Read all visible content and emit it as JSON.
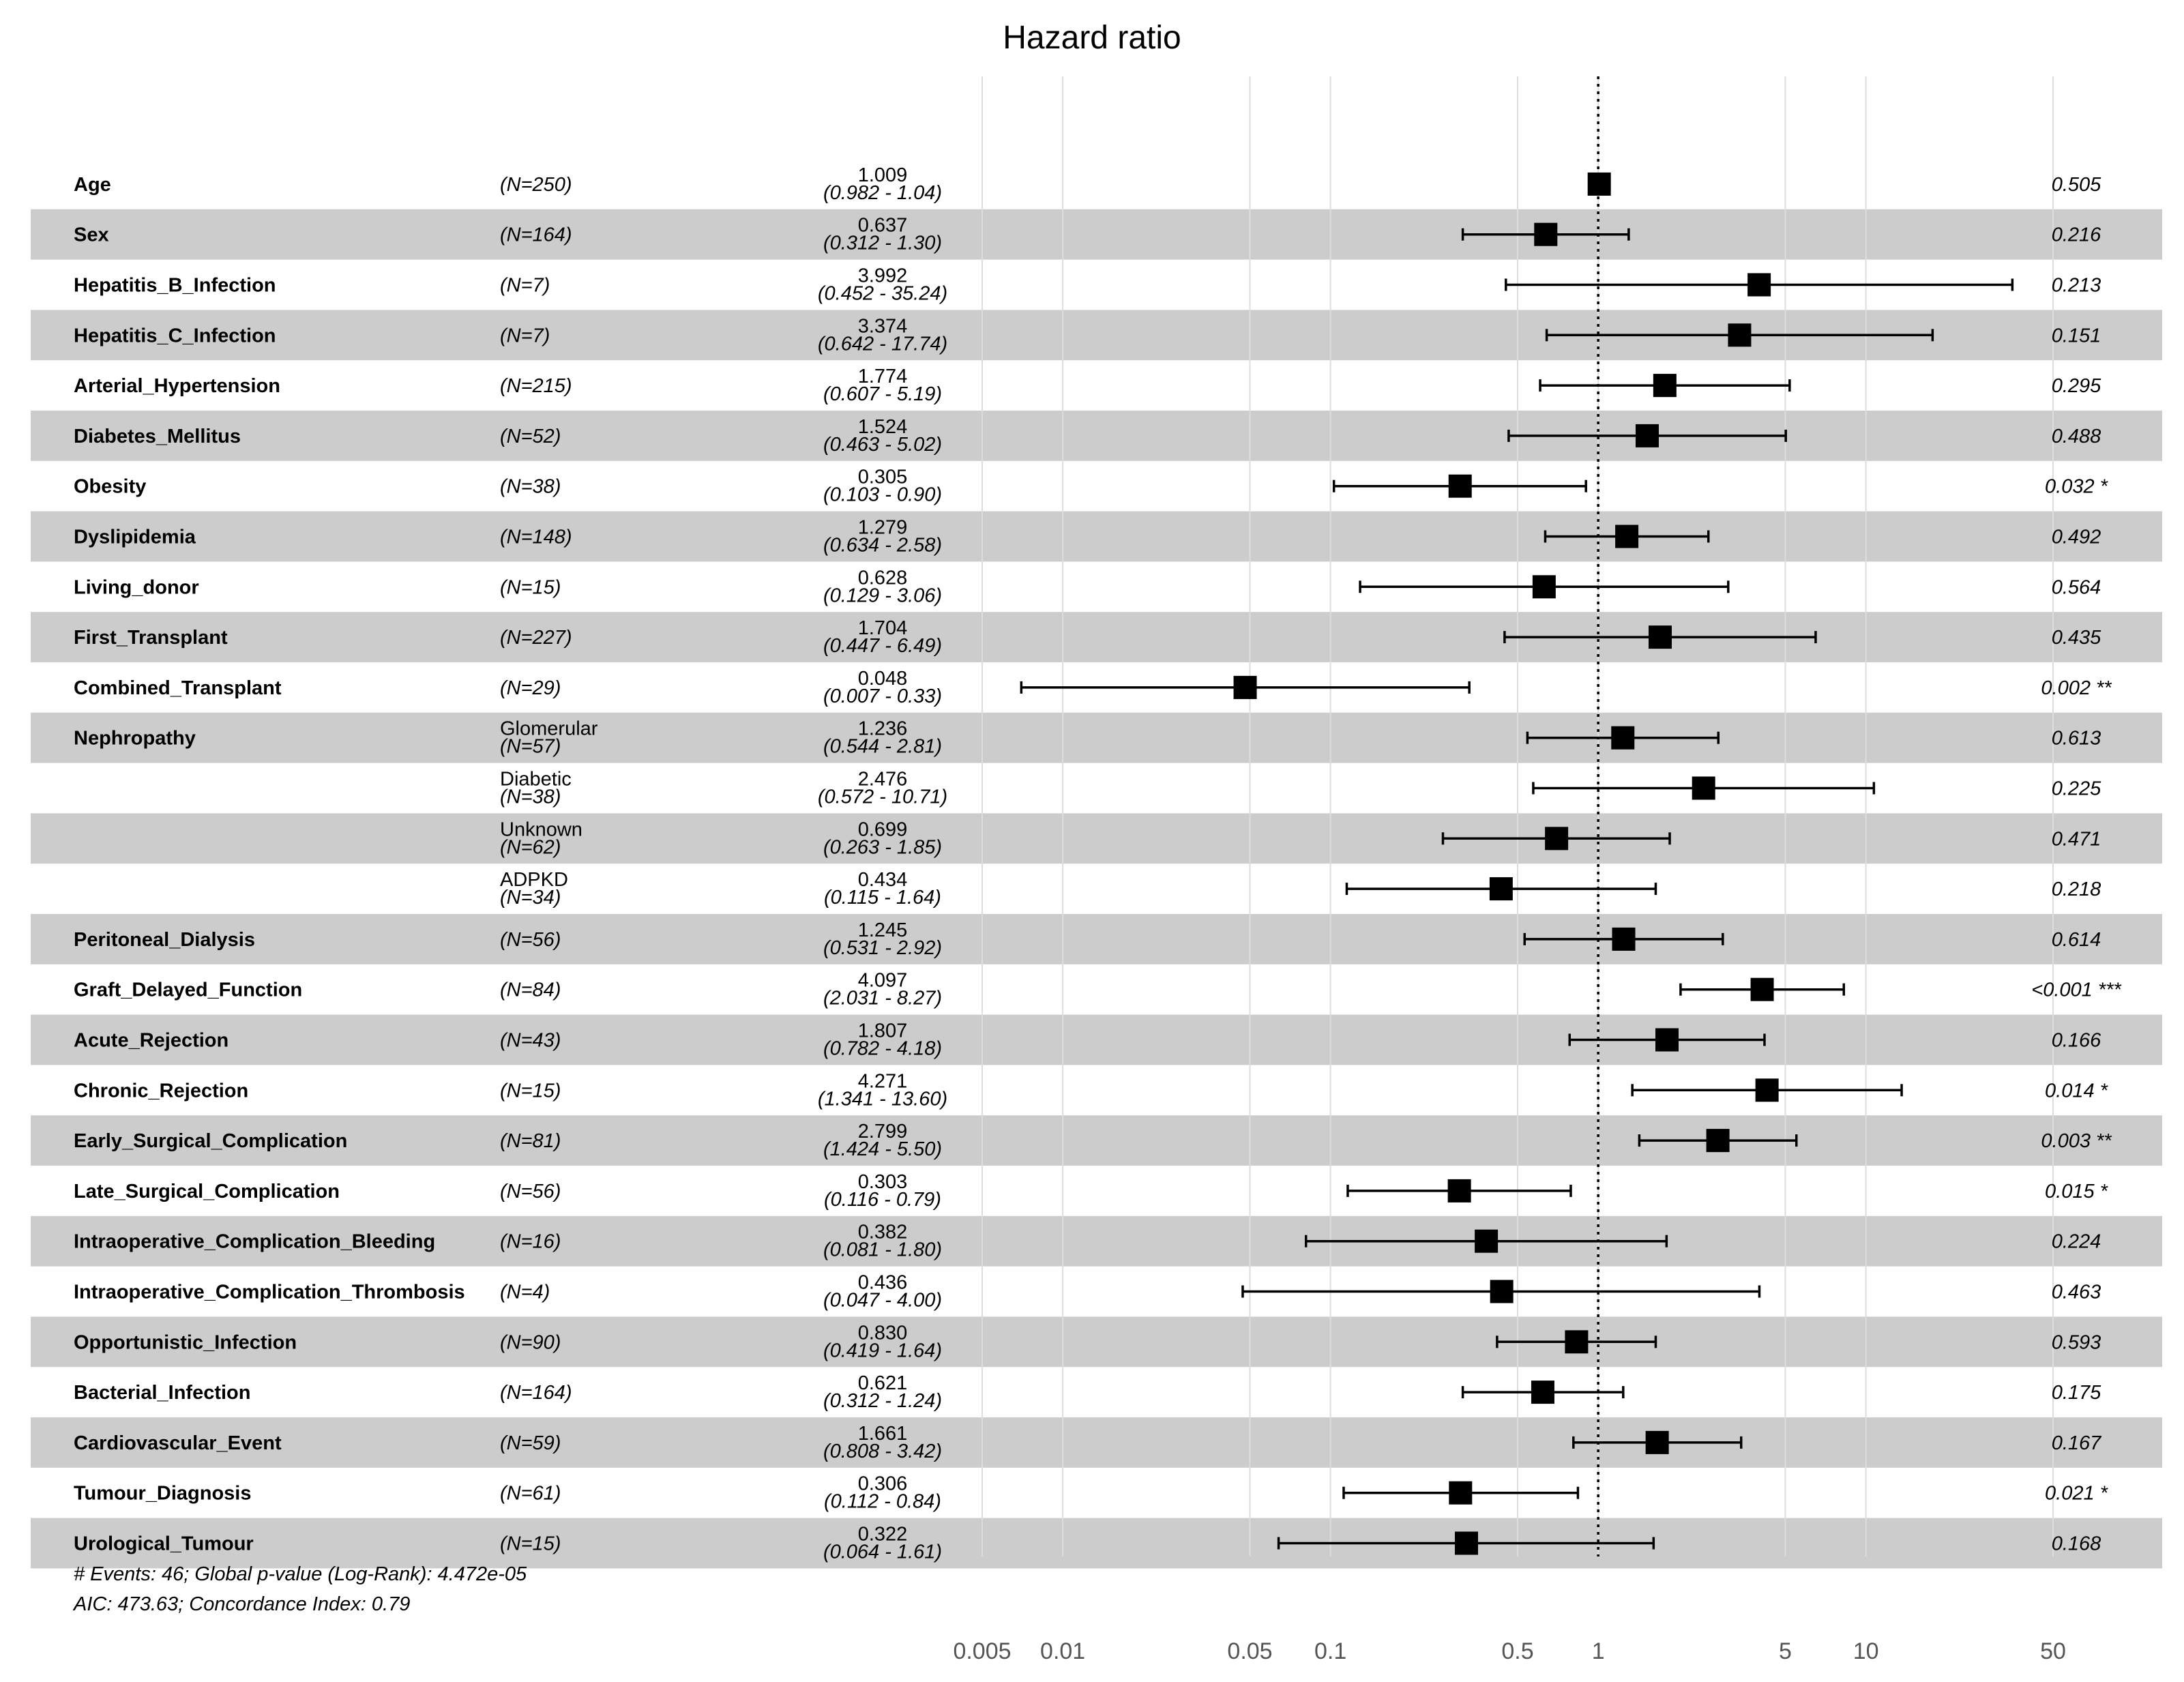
{
  "chart_data": {
    "type": "forest",
    "title": "Hazard ratio",
    "x_scale": "log",
    "reference_line": 1,
    "xlim": [
      0.005,
      50
    ],
    "x_ticks": [
      {
        "value": 0.005,
        "label": "0.005"
      },
      {
        "value": 0.01,
        "label": "0.01"
      },
      {
        "value": 0.05,
        "label": "0.05"
      },
      {
        "value": 0.1,
        "label": "0.1"
      },
      {
        "value": 0.5,
        "label": "0.5"
      },
      {
        "value": 1,
        "label": "1"
      },
      {
        "value": 5,
        "label": "5"
      },
      {
        "value": 10,
        "label": "10"
      },
      {
        "value": 50,
        "label": "50"
      }
    ],
    "rows": [
      {
        "var": "Age",
        "level": "",
        "n": "(N=250)",
        "hr": 1.009,
        "lo": 0.982,
        "hi": 1.04,
        "hr_text": "1.009",
        "ci_text": "(0.982 -  1.04)",
        "p": "0.505",
        "shade": false
      },
      {
        "var": "Sex",
        "level": "",
        "n": "(N=164)",
        "hr": 0.637,
        "lo": 0.312,
        "hi": 1.3,
        "hr_text": "0.637",
        "ci_text": "(0.312 -  1.30)",
        "p": "0.216",
        "shade": true
      },
      {
        "var": "Hepatitis_B_Infection",
        "level": "",
        "n": "(N=7)",
        "hr": 3.992,
        "lo": 0.452,
        "hi": 35.24,
        "hr_text": "3.992",
        "ci_text": "(0.452 - 35.24)",
        "p": "0.213",
        "shade": false
      },
      {
        "var": "Hepatitis_C_Infection",
        "level": "",
        "n": "(N=7)",
        "hr": 3.374,
        "lo": 0.642,
        "hi": 17.74,
        "hr_text": "3.374",
        "ci_text": "(0.642 - 17.74)",
        "p": "0.151",
        "shade": true
      },
      {
        "var": "Arterial_Hypertension",
        "level": "",
        "n": "(N=215)",
        "hr": 1.774,
        "lo": 0.607,
        "hi": 5.19,
        "hr_text": "1.774",
        "ci_text": "(0.607 -  5.19)",
        "p": "0.295",
        "shade": false
      },
      {
        "var": "Diabetes_Mellitus",
        "level": "",
        "n": "(N=52)",
        "hr": 1.524,
        "lo": 0.463,
        "hi": 5.02,
        "hr_text": "1.524",
        "ci_text": "(0.463 -  5.02)",
        "p": "0.488",
        "shade": true
      },
      {
        "var": "Obesity",
        "level": "",
        "n": "(N=38)",
        "hr": 0.305,
        "lo": 0.103,
        "hi": 0.9,
        "hr_text": "0.305",
        "ci_text": "(0.103 -  0.90)",
        "p": "0.032 *",
        "shade": false
      },
      {
        "var": "Dyslipidemia",
        "level": "",
        "n": "(N=148)",
        "hr": 1.279,
        "lo": 0.634,
        "hi": 2.58,
        "hr_text": "1.279",
        "ci_text": "(0.634 -  2.58)",
        "p": "0.492",
        "shade": true
      },
      {
        "var": "Living_donor",
        "level": "",
        "n": "(N=15)",
        "hr": 0.628,
        "lo": 0.129,
        "hi": 3.06,
        "hr_text": "0.628",
        "ci_text": "(0.129 -  3.06)",
        "p": "0.564",
        "shade": false
      },
      {
        "var": "First_Transplant",
        "level": "",
        "n": "(N=227)",
        "hr": 1.704,
        "lo": 0.447,
        "hi": 6.49,
        "hr_text": "1.704",
        "ci_text": "(0.447 -  6.49)",
        "p": "0.435",
        "shade": true
      },
      {
        "var": "Combined_Transplant",
        "level": "",
        "n": "(N=29)",
        "hr": 0.048,
        "lo": 0.007,
        "hi": 0.33,
        "hr_text": "0.048",
        "ci_text": "(0.007 -  0.33)",
        "p": "0.002 **",
        "shade": false
      },
      {
        "var": "Nephropathy",
        "level": "Glomerular",
        "n": "(N=57)",
        "hr": 1.236,
        "lo": 0.544,
        "hi": 2.81,
        "hr_text": "1.236",
        "ci_text": "(0.544 -  2.81)",
        "p": "0.613",
        "shade": true
      },
      {
        "var": "",
        "level": "Diabetic",
        "n": "(N=38)",
        "hr": 2.476,
        "lo": 0.572,
        "hi": 10.71,
        "hr_text": "2.476",
        "ci_text": "(0.572 - 10.71)",
        "p": "0.225",
        "shade": false
      },
      {
        "var": "",
        "level": "Unknown",
        "n": "(N=62)",
        "hr": 0.699,
        "lo": 0.263,
        "hi": 1.85,
        "hr_text": "0.699",
        "ci_text": "(0.263 -  1.85)",
        "p": "0.471",
        "shade": true
      },
      {
        "var": "",
        "level": "ADPKD",
        "n": "(N=34)",
        "hr": 0.434,
        "lo": 0.115,
        "hi": 1.64,
        "hr_text": "0.434",
        "ci_text": "(0.115 -  1.64)",
        "p": "0.218",
        "shade": false
      },
      {
        "var": "Peritoneal_Dialysis",
        "level": "",
        "n": "(N=56)",
        "hr": 1.245,
        "lo": 0.531,
        "hi": 2.92,
        "hr_text": "1.245",
        "ci_text": "(0.531 -  2.92)",
        "p": "0.614",
        "shade": true
      },
      {
        "var": "Graft_Delayed_Function",
        "level": "",
        "n": "(N=84)",
        "hr": 4.097,
        "lo": 2.031,
        "hi": 8.27,
        "hr_text": "4.097",
        "ci_text": "(2.031 -  8.27)",
        "p": "<0.001 ***",
        "shade": false
      },
      {
        "var": "Acute_Rejection",
        "level": "",
        "n": "(N=43)",
        "hr": 1.807,
        "lo": 0.782,
        "hi": 4.18,
        "hr_text": "1.807",
        "ci_text": "(0.782 -  4.18)",
        "p": "0.166",
        "shade": true
      },
      {
        "var": "Chronic_Rejection",
        "level": "",
        "n": "(N=15)",
        "hr": 4.271,
        "lo": 1.341,
        "hi": 13.6,
        "hr_text": "4.271",
        "ci_text": "(1.341 - 13.60)",
        "p": "0.014 *",
        "shade": false
      },
      {
        "var": "Early_Surgical_Complication",
        "level": "",
        "n": "(N=81)",
        "hr": 2.799,
        "lo": 1.424,
        "hi": 5.5,
        "hr_text": "2.799",
        "ci_text": "(1.424 -  5.50)",
        "p": "0.003 **",
        "shade": true
      },
      {
        "var": "Late_Surgical_Complication",
        "level": "",
        "n": "(N=56)",
        "hr": 0.303,
        "lo": 0.116,
        "hi": 0.79,
        "hr_text": "0.303",
        "ci_text": "(0.116 -  0.79)",
        "p": "0.015 *",
        "shade": false
      },
      {
        "var": "Intraoperative_Complication_Bleeding",
        "level": "",
        "n": "(N=16)",
        "hr": 0.382,
        "lo": 0.081,
        "hi": 1.8,
        "hr_text": "0.382",
        "ci_text": "(0.081 -  1.80)",
        "p": "0.224",
        "shade": true
      },
      {
        "var": "Intraoperative_Complication_Thrombosis",
        "level": "",
        "n": "(N=4)",
        "hr": 0.436,
        "lo": 0.047,
        "hi": 4.0,
        "hr_text": "0.436",
        "ci_text": "(0.047 -  4.00)",
        "p": "0.463",
        "shade": false
      },
      {
        "var": "Opportunistic_Infection",
        "level": "",
        "n": "(N=90)",
        "hr": 0.83,
        "lo": 0.419,
        "hi": 1.64,
        "hr_text": "0.830",
        "ci_text": "(0.419 -  1.64)",
        "p": "0.593",
        "shade": true
      },
      {
        "var": "Bacterial_Infection",
        "level": "",
        "n": "(N=164)",
        "hr": 0.621,
        "lo": 0.312,
        "hi": 1.24,
        "hr_text": "0.621",
        "ci_text": "(0.312 -  1.24)",
        "p": "0.175",
        "shade": false
      },
      {
        "var": "Cardiovascular_Event",
        "level": "",
        "n": "(N=59)",
        "hr": 1.661,
        "lo": 0.808,
        "hi": 3.42,
        "hr_text": "1.661",
        "ci_text": "(0.808 -  3.42)",
        "p": "0.167",
        "shade": true
      },
      {
        "var": "Tumour_Diagnosis",
        "level": "",
        "n": "(N=61)",
        "hr": 0.306,
        "lo": 0.112,
        "hi": 0.84,
        "hr_text": "0.306",
        "ci_text": "(0.112 -  0.84)",
        "p": "0.021 *",
        "shade": false
      },
      {
        "var": "Urological_Tumour",
        "level": "",
        "n": "(N=15)",
        "hr": 0.322,
        "lo": 0.064,
        "hi": 1.61,
        "hr_text": "0.322",
        "ci_text": "(0.064 -  1.61)",
        "p": "0.168",
        "shade": true
      }
    ],
    "footnote_line1": "# Events: 46; Global p-value (Log-Rank): 4.472e-05",
    "footnote_line2": "AIC: 473.63; Concordance Index: 0.79"
  },
  "colors": {
    "shade": "#cccccc",
    "grid": "#dddddd",
    "marker": "#000000"
  }
}
